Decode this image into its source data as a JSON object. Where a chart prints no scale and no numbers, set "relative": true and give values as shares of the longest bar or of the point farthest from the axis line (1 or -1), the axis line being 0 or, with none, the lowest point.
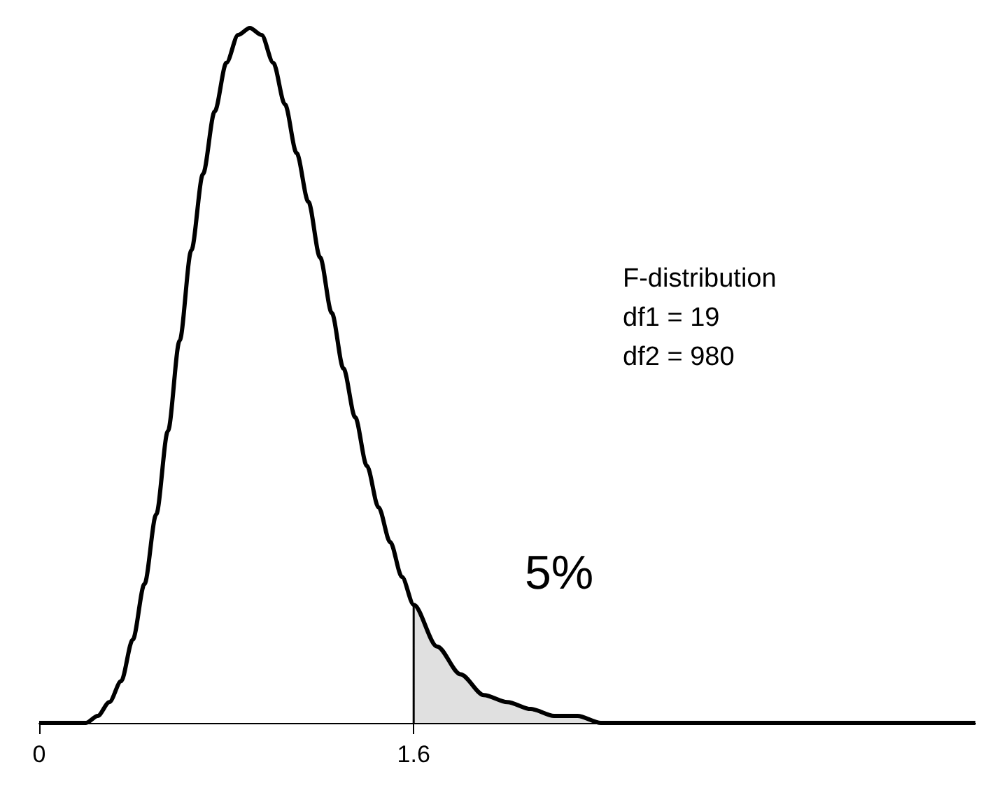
{
  "chart_data": {
    "type": "line",
    "relative": true,
    "xlim": [
      0,
      4
    ],
    "xticks": [
      0,
      1.6
    ],
    "marker": "none",
    "grid": false,
    "annotations": [
      "F-distribution",
      "df1 = 19",
      "df2 = 980",
      "5%"
    ],
    "series": [
      {
        "color": "#000000",
        "x": [
          0,
          0.1,
          0.2,
          0.25,
          0.3,
          0.35,
          0.4,
          0.45,
          0.5,
          0.55,
          0.6,
          0.65,
          0.7,
          0.75,
          0.8,
          0.85,
          0.9,
          0.95,
          1.0,
          1.05,
          1.1,
          1.15,
          1.2,
          1.25,
          1.3,
          1.35,
          1.4,
          1.45,
          1.5,
          1.55,
          1.6,
          1.7,
          1.8,
          1.9,
          2.0,
          2.1,
          2.2,
          2.3,
          2.4,
          2.6,
          2.8,
          3.0,
          3.5,
          4.0
        ],
        "values": [
          0,
          0,
          0,
          0.01,
          0.03,
          0.06,
          0.12,
          0.2,
          0.3,
          0.42,
          0.55,
          0.68,
          0.79,
          0.88,
          0.95,
          0.99,
          1,
          0.99,
          0.95,
          0.89,
          0.82,
          0.75,
          0.67,
          0.59,
          0.51,
          0.44,
          0.37,
          0.31,
          0.26,
          0.21,
          0.17,
          0.11,
          0.07,
          0.04,
          0.03,
          0.02,
          0.01,
          0.01,
          0,
          0,
          0,
          0,
          0,
          0
        ]
      },
      {
        "type": "area",
        "color": "#e0e0e0",
        "x": [
          1.6,
          1.6,
          1.7,
          1.8,
          1.9,
          2.0,
          2.1,
          2.2,
          2.3,
          2.4,
          2.6,
          2.8,
          3.0,
          3.5,
          4.0
        ],
        "values": [
          0,
          0.17,
          0.11,
          0.07,
          0.04,
          0.03,
          0.02,
          0.01,
          0.01,
          0,
          0,
          0,
          0,
          0,
          0
        ]
      }
    ]
  }
}
